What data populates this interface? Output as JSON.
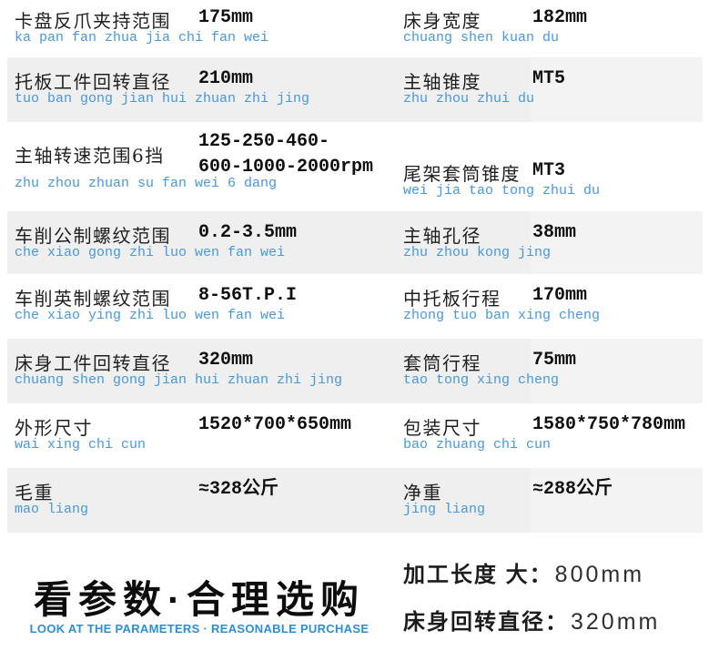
{
  "colors": {
    "pinyin_blue": "#4798dc",
    "footer_blue": "#2a8fd4",
    "stripe_gray": "#efefef",
    "stripe_gray_light": "#f3f3f3"
  },
  "rows": [
    {
      "left": {
        "label": "卡盘反爪夹持范围",
        "pinyin": "ka pan fan zhua jia chi fan wei",
        "value": "175mm"
      },
      "right": {
        "label": "床身宽度",
        "pinyin": "chuang shen kuan du",
        "value": "182mm"
      }
    },
    {
      "left": {
        "label": "托板工件回转直径",
        "pinyin": "tuo ban gong jian hui zhuan zhi jing",
        "value": "210mm"
      },
      "right": {
        "label": "主轴锥度",
        "pinyin": "zhu zhou zhui du",
        "value": "MT5"
      }
    },
    {
      "left": {
        "label": "主轴转速范围6挡",
        "pinyin": "zhu zhou zhuan su fan wei 6 dang",
        "value": "125-250-460-\n600-1000-2000rpm"
      },
      "right": {
        "label": "尾架套筒锥度",
        "pinyin": "wei jia tao tong zhui du",
        "value": "MT3"
      }
    },
    {
      "left": {
        "label": "车削公制螺纹范围",
        "pinyin": "che xiao gong zhi luo wen fan wei",
        "value": "0.2-3.5mm"
      },
      "right": {
        "label": "主轴孔径",
        "pinyin": "zhu zhou kong jing",
        "value": "38mm"
      }
    },
    {
      "left": {
        "label": "车削英制螺纹范围",
        "pinyin": "che xiao ying zhi luo wen fan wei",
        "value": "8-56T.P.I"
      },
      "right": {
        "label": "中托板行程",
        "pinyin": "zhong tuo ban xing cheng",
        "value": "170mm"
      }
    },
    {
      "left": {
        "label": "床身工件回转直径",
        "pinyin": "chuang shen gong jian hui zhuan zhi jing",
        "value": "320mm"
      },
      "right": {
        "label": "套筒行程",
        "pinyin": "tao tong xing cheng",
        "value": "75mm"
      }
    },
    {
      "left": {
        "label": "外形尺寸",
        "pinyin": "wai xing chi cun",
        "value": "1520*700*650mm"
      },
      "right": {
        "label": "包装尺寸",
        "pinyin": "bao zhuang chi cun",
        "value": "1580*750*780mm"
      }
    },
    {
      "left": {
        "label": "毛重",
        "pinyin": "mao liang",
        "value": "≈328公斤"
      },
      "right": {
        "label": "净重",
        "pinyin": "jing liang",
        "value": "≈288公斤"
      }
    }
  ],
  "footer": {
    "headline": "看参数·合理选购",
    "subline": "LOOK AT THE PARAMETERS · REASONABLE PURCHASE",
    "specs": [
      {
        "label": "加工长度 大：",
        "value": "800mm"
      },
      {
        "label": "床身回转直径：",
        "value": "320mm"
      }
    ]
  }
}
